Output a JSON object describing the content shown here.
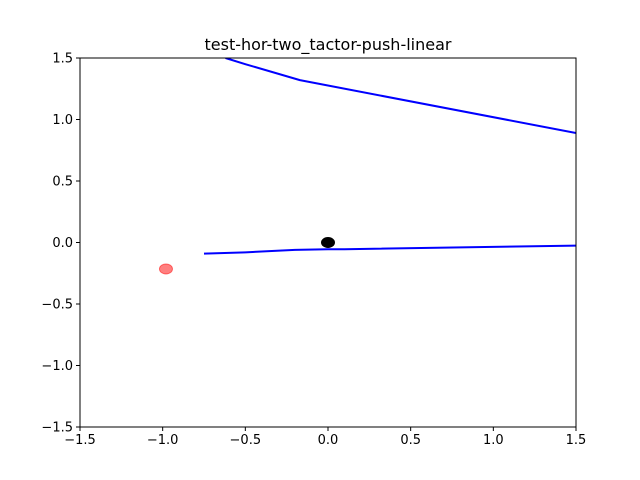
{
  "chart_data": {
    "type": "line",
    "title": "test-hor-two_tactor-push-linear",
    "xlabel": "",
    "ylabel": "",
    "xlim": [
      -1.5,
      1.5
    ],
    "ylim": [
      -1.5,
      1.5
    ],
    "grid": false,
    "xticks": [
      "−1.5",
      "−1.0",
      "−0.5",
      "0.0",
      "0.5",
      "1.0",
      "1.5"
    ],
    "yticks": [
      "−1.5",
      "−1.0",
      "−0.5",
      "0.0",
      "0.5",
      "1.0",
      "1.5"
    ],
    "series": [
      {
        "color": "#0000ff",
        "x": [
          -0.62,
          -0.5,
          -0.17,
          1.5
        ],
        "y": [
          1.5,
          1.45,
          1.32,
          0.89
        ]
      },
      {
        "color": "#0000ff",
        "x": [
          -0.75,
          -0.5,
          -0.2,
          0.0,
          0.1,
          1.5
        ],
        "y": [
          -0.09,
          -0.08,
          -0.06,
          -0.055,
          -0.055,
          -0.025
        ]
      }
    ],
    "markers": [
      {
        "x": 0.0,
        "y": 0.0,
        "color": "#000000",
        "opacity": 1.0
      },
      {
        "x": -0.98,
        "y": -0.215,
        "color": "#ff0000",
        "opacity": 0.5
      }
    ]
  }
}
